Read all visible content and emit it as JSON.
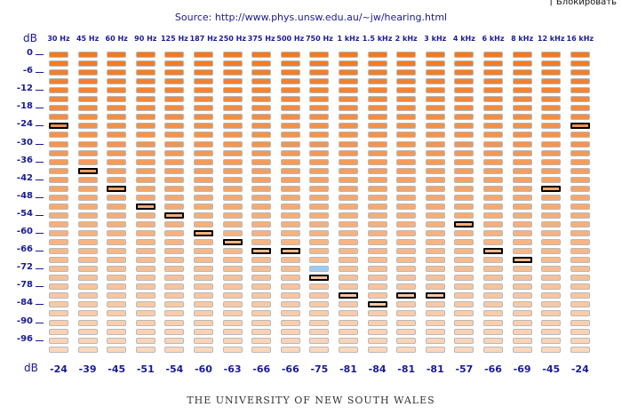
{
  "browser_popup_text": "Блокировать",
  "source": {
    "label": "Source:",
    "url": "http://www.phys.unsw.edu.au/~jw/hearing.html"
  },
  "unit_label": "dB",
  "frequencies": [
    "30 Hz",
    "45 Hz",
    "60 Hz",
    "90 Hz",
    "125 Hz",
    "187 Hz",
    "250 Hz",
    "375 Hz",
    "500 Hz",
    "750 Hz",
    "1 kHz",
    "1.5 kHz",
    "2 kHz",
    "3 kHz",
    "4 kHz",
    "6 kHz",
    "8 kHz",
    "12 kHz",
    "16 kHz"
  ],
  "level_labels": [
    "0",
    "-6",
    "-12",
    "-18",
    "-24",
    "-30",
    "-36",
    "-42",
    "-48",
    "-54",
    "-60",
    "-66",
    "-72",
    "-78",
    "-84",
    "-90",
    "-96"
  ],
  "level_step_db": 3,
  "level_count": 34,
  "selected_levels_db": [
    -24,
    -39,
    -45,
    -51,
    -54,
    -60,
    -63,
    -66,
    -66,
    -75,
    -81,
    -84,
    -81,
    -81,
    -57,
    -66,
    -69,
    -45,
    -24
  ],
  "result_labels": [
    "-24",
    "-39",
    "-45",
    "-51",
    "-54",
    "-60",
    "-63",
    "-66",
    "-66",
    "-75",
    "-81",
    "-84",
    "-81",
    "-81",
    "-57",
    "-66",
    "-69",
    "-45",
    "-24"
  ],
  "highlight": {
    "frequency_index": 9,
    "level_db": -72,
    "color": "#9ecbf5"
  },
  "colors": {
    "cell_dark": "#f07a22",
    "cell_light": "#fbd7bc",
    "label_blue": "#1a1a99",
    "selected_border": "#000000"
  },
  "footer": "THE UNIVERSITY OF NEW SOUTH WALES"
}
